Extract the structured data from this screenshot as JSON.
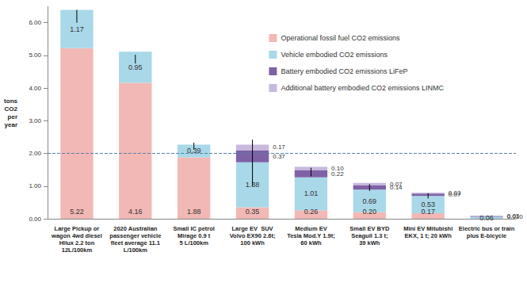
{
  "chart_data": {
    "type": "bar",
    "stacked": true,
    "data_labels": true,
    "grid": false,
    "legend": "top-right",
    "y_label": "tons\nCO2\nper\nyear",
    "categories": [
      "Large Pickup or\nwagon 4wd diesel\nHilux 2.2 ton\n12L/100km",
      "2020 Australian\npassenger vehicle\nfleet average 11.1\nL/100km",
      "Small IC petrol\nMirage 0.9 t\n5 L/100km",
      "Large EV  SUV\nVolvo EX90 2.6t;\n100 kWh",
      "Medium EV\nTesla Mod.Y 1.9t;\n60 kWh",
      "Small EV BYD\nSeagull 1.3 t;\n39 kWh",
      "Mini EV Mitubishi\nEKX, 1 t; 20 kWh",
      "Electric bus or train\nplus E-bicycle"
    ],
    "series": [
      {
        "name": "Operational fossil fuel CO2 emissions",
        "color": "#f2b8b5",
        "values": [
          5.22,
          4.16,
          1.88,
          0.35,
          0.26,
          0.2,
          0.17,
          null
        ],
        "value_labels": [
          "5.22",
          "4.16",
          "1.88",
          "0.35",
          "0.26",
          "0.20",
          "0.17",
          null
        ]
      },
      {
        "name": "Vehicle embodied CO2 emissions",
        "color": "#a9d8e8",
        "values": [
          1.17,
          0.95,
          0.39,
          1.38,
          1.01,
          0.69,
          0.53,
          0.06
        ],
        "value_labels": [
          "1.17",
          "0.95",
          "0.39",
          "1.38",
          "1.01",
          "0.69",
          "0.53",
          "0.06"
        ]
      },
      {
        "name": "Battery embodied CO2 emissions LiFeP",
        "color": "#7e62a6",
        "values": [
          null,
          null,
          null,
          0.37,
          0.22,
          0.14,
          0.07,
          0.01
        ],
        "value_labels": [
          null,
          null,
          null,
          "0.37",
          "0.22",
          "0.14",
          "0.07",
          "0.010"
        ]
      },
      {
        "name": "Additional battery embodied CO2 emissions LINMC",
        "color": "#c7bade",
        "values": [
          null,
          null,
          null,
          0.17,
          0.1,
          0.07,
          0.03,
          0.03
        ],
        "value_labels": [
          null,
          null,
          null,
          "0.17",
          "0.10",
          "0.07",
          "0.03",
          "0.03"
        ]
      }
    ],
    "error_bars": [
      [
        6.0,
        6.39
      ],
      [
        4.75,
        5.02
      ],
      [
        2.12,
        2.33
      ],
      [
        1.0,
        2.42
      ],
      [
        1.3,
        1.56
      ],
      [
        0.85,
        1.06
      ],
      [
        0.62,
        0.78
      ],
      null
    ],
    "reference_line": 2,
    "ylim": [
      0,
      6.5
    ],
    "yticks": [
      {
        "value": 0,
        "label": "0.00"
      },
      {
        "value": 1,
        "label": "1.00"
      },
      {
        "value": 2,
        "label": "2.00"
      },
      {
        "value": 3,
        "label": "3.00"
      },
      {
        "value": 4,
        "label": "4.00"
      },
      {
        "value": 5,
        "label": "5.00"
      },
      {
        "value": 6,
        "label": "6.00"
      }
    ]
  }
}
